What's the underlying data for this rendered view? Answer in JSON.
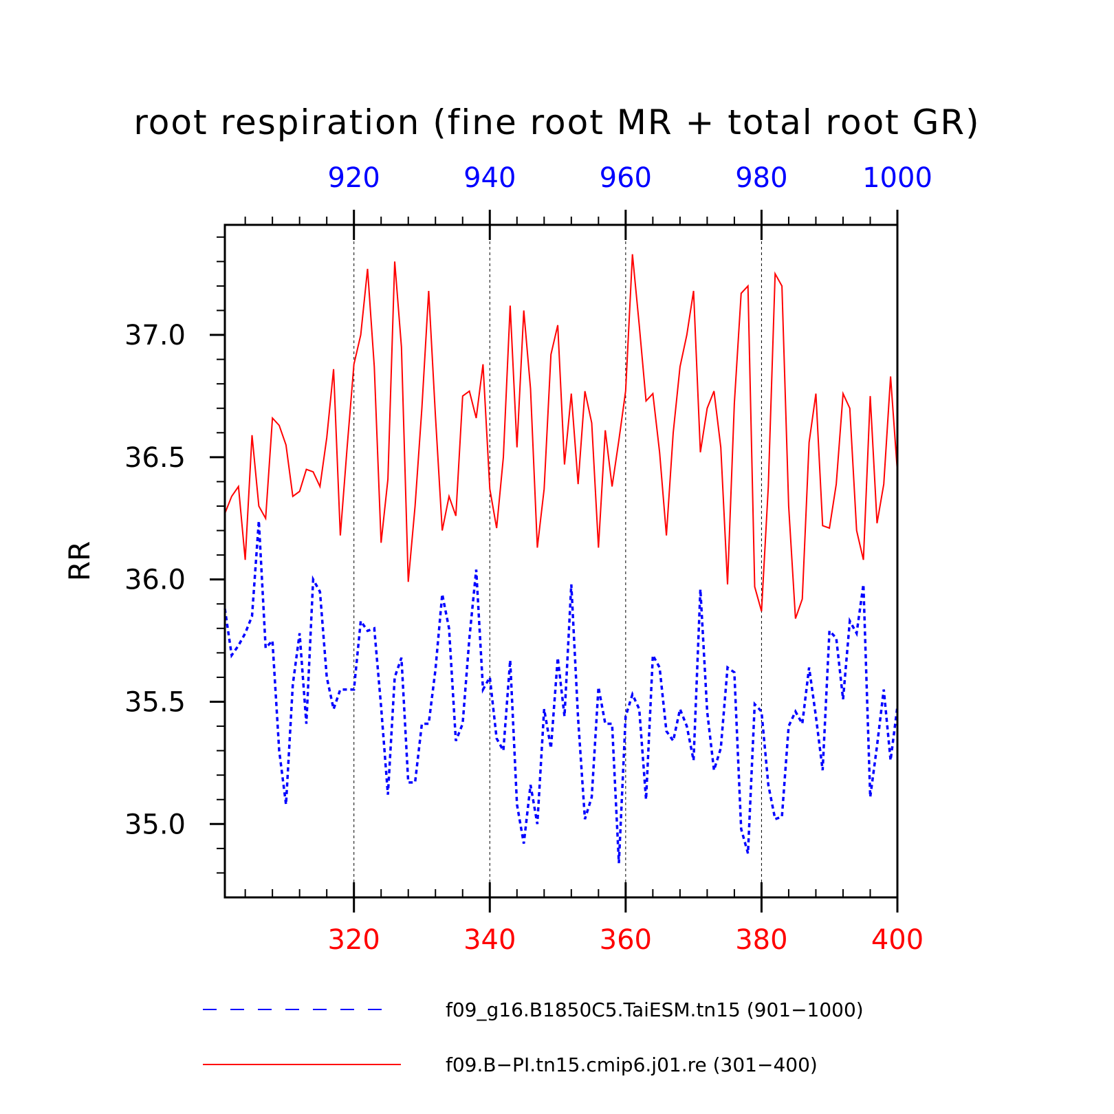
{
  "chart_data": {
    "type": "line",
    "title": "root respiration (fine root MR + total root GR)",
    "ylabel": "RR",
    "ylim": [
      34.7,
      37.45
    ],
    "yticks": [
      35.0,
      35.5,
      36.0,
      36.5,
      37.0
    ],
    "ytick_labels": [
      "35.0",
      "35.5",
      "36.0",
      "36.5",
      "37.0"
    ],
    "x_bottom": {
      "range": [
        301,
        400
      ],
      "ticks": [
        320,
        340,
        360,
        380,
        400
      ],
      "color": "#ff0000"
    },
    "x_top": {
      "range": [
        901,
        1000
      ],
      "ticks": [
        920,
        940,
        960,
        980,
        1000
      ],
      "color": "#0000ff"
    },
    "gridlines_x": [
      320,
      340,
      360,
      380
    ],
    "legend": {
      "position": "bottom",
      "entries": [
        {
          "label": "f09_g16.B1850C5.TaiESM.tn15 (901−1000)",
          "color": "#0000ff",
          "style": "dashed"
        },
        {
          "label": "f09.B−PI.tn15.cmip6.j01.re (301−400)",
          "color": "#ff0000",
          "style": "solid"
        }
      ]
    },
    "series": [
      {
        "name": "f09.B−PI.tn15.cmip6.j01.re (301−400)",
        "color": "#ff0000",
        "style": "solid",
        "axis": "bottom",
        "x_start": 301,
        "values": [
          36.27,
          36.34,
          36.38,
          36.08,
          36.59,
          36.3,
          36.25,
          36.66,
          36.63,
          36.55,
          36.34,
          36.36,
          36.45,
          36.44,
          36.38,
          36.58,
          36.86,
          36.18,
          36.54,
          36.88,
          37.0,
          37.27,
          36.87,
          36.15,
          36.41,
          37.3,
          36.95,
          35.99,
          36.3,
          36.7,
          37.18,
          36.67,
          36.2,
          36.34,
          36.26,
          36.75,
          36.77,
          36.66,
          36.88,
          36.37,
          36.21,
          36.5,
          37.12,
          36.54,
          37.1,
          36.78,
          36.13,
          36.37,
          36.92,
          37.04,
          36.47,
          36.76,
          36.39,
          36.77,
          36.64,
          36.13,
          36.61,
          36.38,
          36.57,
          36.77,
          37.33,
          37.04,
          36.73,
          36.76,
          36.52,
          36.18,
          36.6,
          36.87,
          37.0,
          37.18,
          36.52,
          36.7,
          36.77,
          36.54,
          35.98,
          36.72,
          37.17,
          37.2,
          35.97,
          35.87,
          36.38,
          37.25,
          37.2,
          36.3,
          35.84,
          35.92,
          36.56,
          36.76,
          36.22,
          36.21,
          36.39,
          36.76,
          36.7,
          36.2,
          36.08,
          36.75,
          36.23,
          36.39,
          36.83,
          36.44
        ]
      },
      {
        "name": "f09_g16.B1850C5.TaiESM.tn15 (901−1000)",
        "color": "#0000ff",
        "style": "dashed",
        "axis": "top",
        "x_start": 901,
        "values": [
          35.88,
          35.69,
          35.73,
          35.78,
          35.85,
          36.24,
          35.72,
          35.75,
          35.3,
          35.08,
          35.57,
          35.78,
          35.41,
          36.0,
          35.95,
          35.6,
          35.47,
          35.55,
          35.55,
          35.55,
          35.83,
          35.79,
          35.8,
          35.48,
          35.12,
          35.6,
          35.68,
          35.17,
          35.17,
          35.41,
          35.41,
          35.63,
          35.94,
          35.8,
          35.34,
          35.41,
          35.76,
          36.04,
          35.55,
          35.6,
          35.35,
          35.3,
          35.67,
          35.08,
          34.92,
          35.16,
          35.0,
          35.47,
          35.31,
          35.68,
          35.44,
          35.98,
          35.43,
          35.02,
          35.11,
          35.56,
          35.41,
          35.41,
          34.84,
          35.44,
          35.53,
          35.47,
          35.1,
          35.69,
          35.64,
          35.38,
          35.34,
          35.47,
          35.4,
          35.26,
          35.96,
          35.46,
          35.22,
          35.31,
          35.64,
          35.62,
          34.98,
          34.88,
          35.49,
          35.46,
          35.16,
          35.02,
          35.03,
          35.4,
          35.46,
          35.41,
          35.64,
          35.44,
          35.22,
          35.79,
          35.76,
          35.51,
          35.83,
          35.78,
          35.98,
          35.11,
          35.32,
          35.55,
          35.26,
          35.48
        ]
      }
    ]
  }
}
